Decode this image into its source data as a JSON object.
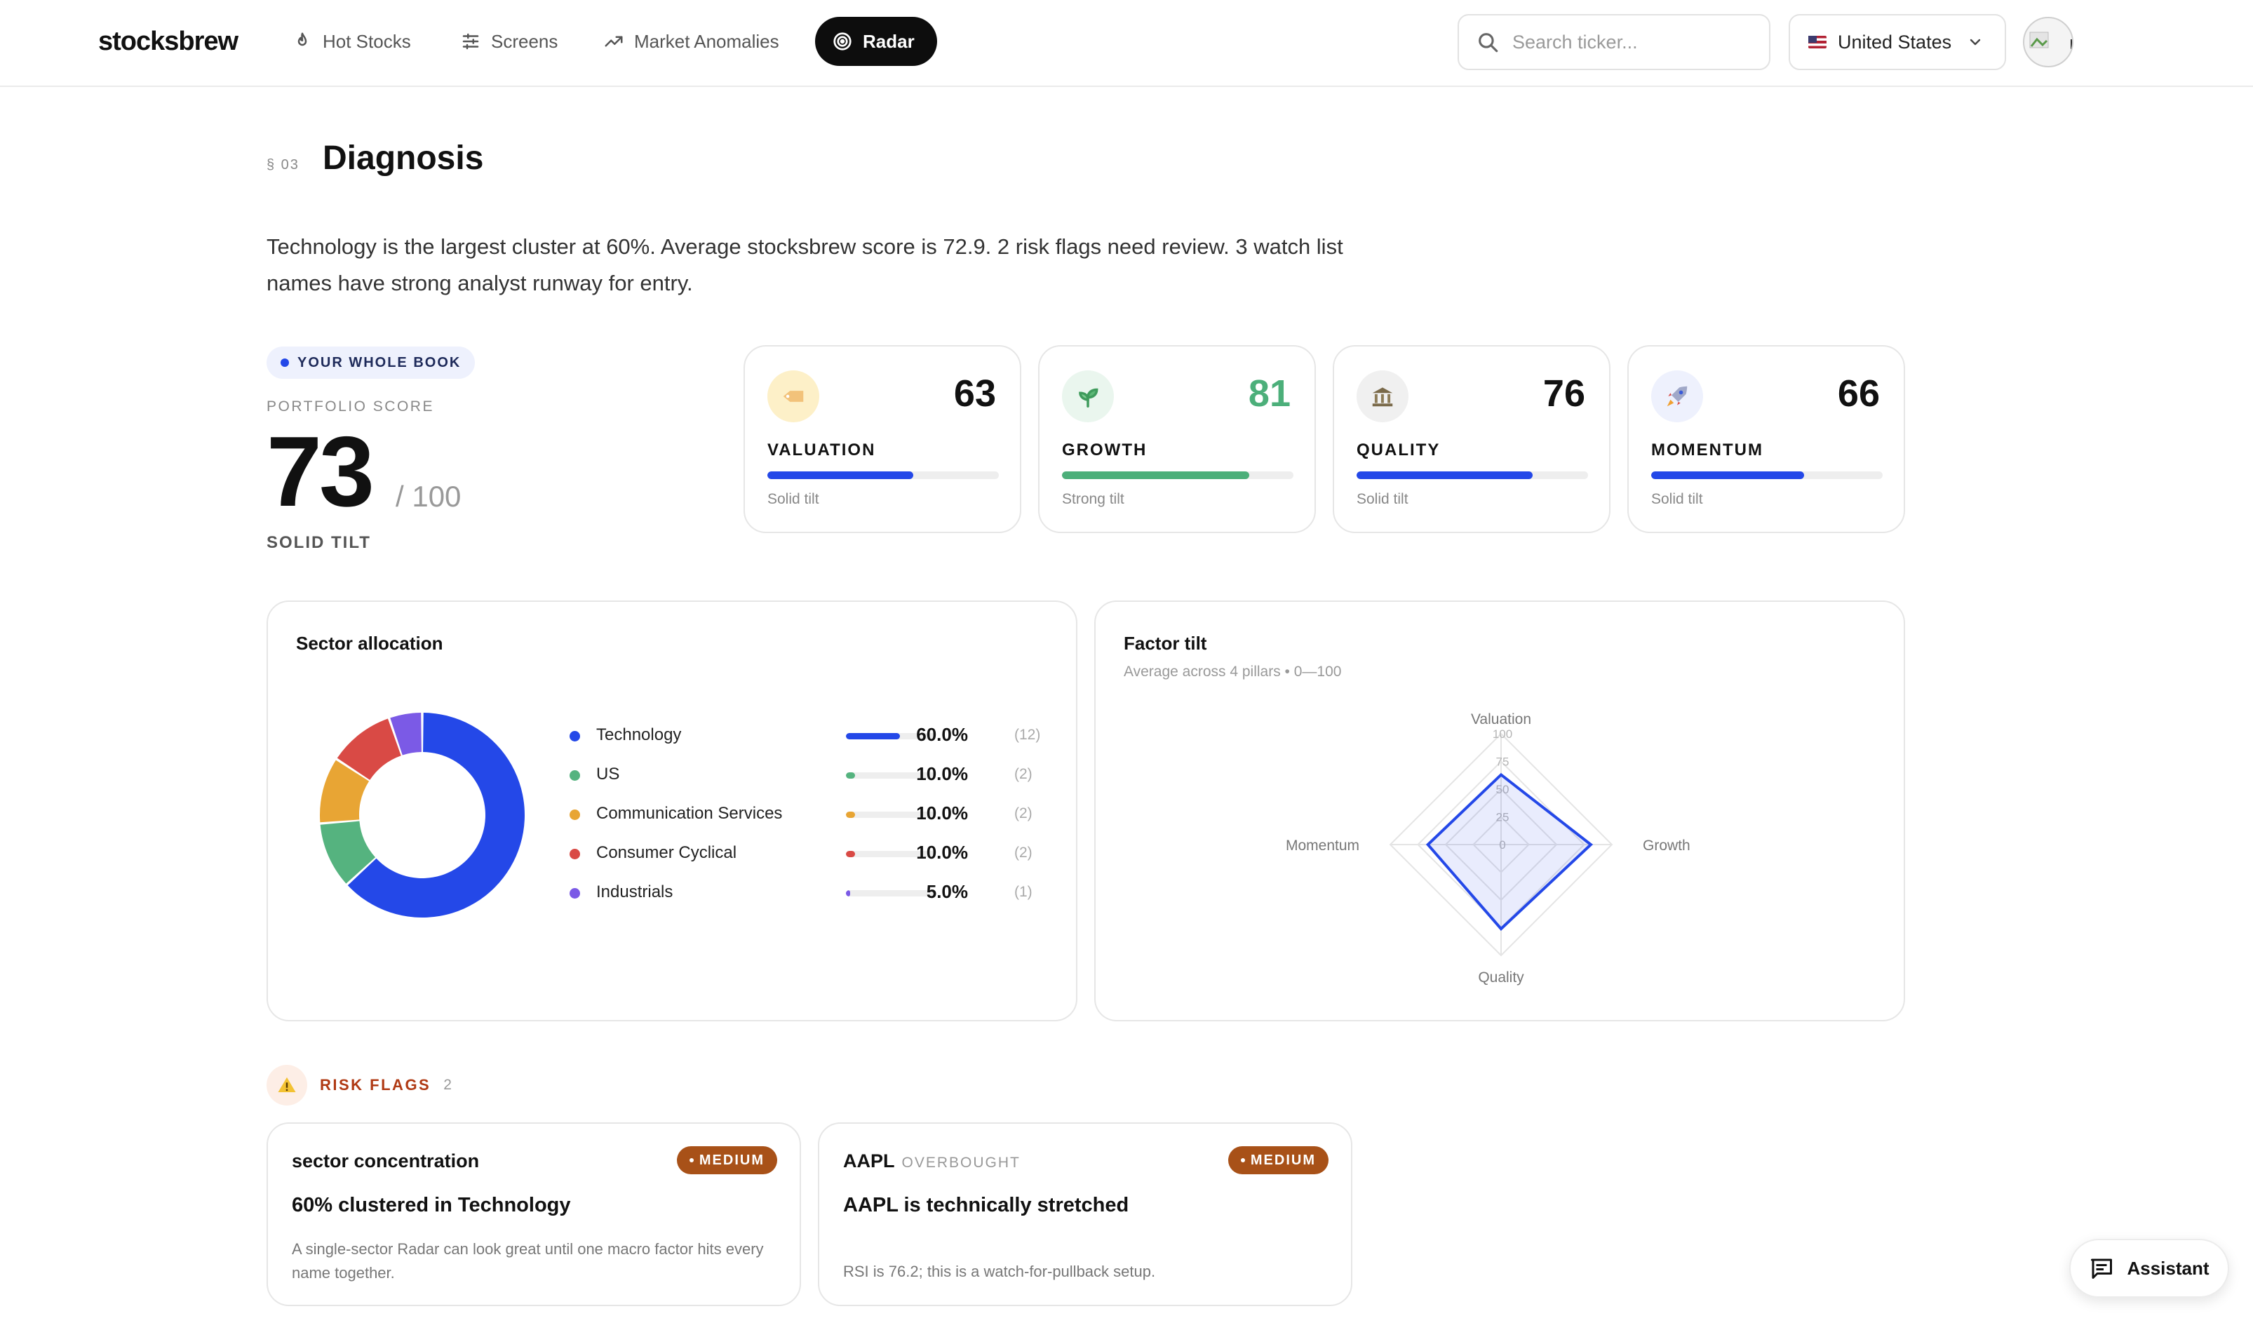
{
  "header": {
    "logo": "stocksbrew",
    "nav": [
      {
        "label": "Hot Stocks",
        "icon": "flame-icon"
      },
      {
        "label": "Screens",
        "icon": "sliders-icon"
      },
      {
        "label": "Market Anomalies",
        "icon": "trending-up-icon"
      },
      {
        "label": "Radar",
        "icon": "radar-icon",
        "active": true
      }
    ],
    "search_placeholder": "Search ticker...",
    "country": "United States"
  },
  "diagnosis": {
    "section_number": "§ 03",
    "title": "Diagnosis",
    "summary": "Technology is the largest cluster at 60%. Average stocksbrew score is 72.9. 2 risk flags need review. 3 watch list names have strong analyst runway for entry."
  },
  "portfolio": {
    "pill": "YOUR WHOLE BOOK",
    "label": "PORTFOLIO SCORE",
    "score": "73",
    "out_of": "/ 100",
    "tilt": "SOLID TILT"
  },
  "pillars": [
    {
      "name": "VALUATION",
      "value": "63",
      "fill": 0.63,
      "note": "Solid tilt",
      "color": "#2448e8",
      "value_color": "#111111",
      "icon": "price-tag-icon",
      "icon_bg": "#fdf0c8"
    },
    {
      "name": "GROWTH",
      "value": "81",
      "fill": 0.81,
      "note": "Strong tilt",
      "color": "#4caf7a",
      "value_color": "#4caf7a",
      "icon": "seedling-icon",
      "icon_bg": "#eaf6ee"
    },
    {
      "name": "QUALITY",
      "value": "76",
      "fill": 0.76,
      "note": "Solid tilt",
      "color": "#2448e8",
      "value_color": "#111111",
      "icon": "bank-icon",
      "icon_bg": "#f0f0f0"
    },
    {
      "name": "MOMENTUM",
      "value": "66",
      "fill": 0.66,
      "note": "Solid tilt",
      "color": "#2448e8",
      "value_color": "#111111",
      "icon": "rocket-icon",
      "icon_bg": "#eef1fd"
    }
  ],
  "sector_panel": {
    "title": "Sector allocation"
  },
  "factor_panel": {
    "title": "Factor tilt",
    "subtitle": "Average across 4 pillars • 0—100"
  },
  "chart_data": [
    {
      "type": "pie",
      "title": "Sector allocation",
      "categories": [
        "Technology",
        "US",
        "Communication Services",
        "Consumer Cyclical",
        "Industrials"
      ],
      "values": [
        60.0,
        10.0,
        10.0,
        10.0,
        5.0
      ],
      "counts": [
        "(12)",
        "(2)",
        "(2)",
        "(2)",
        "(1)"
      ],
      "labels": [
        "60.0%",
        "10.0%",
        "10.0%",
        "10.0%",
        "5.0%"
      ],
      "colors": [
        "#2448e8",
        "#55b37f",
        "#e8a534",
        "#d94a45",
        "#7b5ae6"
      ],
      "note": "donut"
    },
    {
      "type": "radar",
      "title": "Factor tilt",
      "axes": [
        "Valuation",
        "Growth",
        "Quality",
        "Momentum"
      ],
      "values": [
        63,
        81,
        76,
        66
      ],
      "ticks": [
        "0",
        "25",
        "50",
        "75",
        "100"
      ],
      "range": [
        0,
        100
      ],
      "color": "#2448e8"
    }
  ],
  "risk": {
    "label": "RISK FLAGS",
    "count": "2",
    "cards": [
      {
        "title": "sector concentration",
        "tag": "",
        "badge": "MEDIUM",
        "headline": "60% clustered in Technology",
        "body": "A single-sector Radar can look great until one macro factor hits every name together."
      },
      {
        "title": "AAPL",
        "tag": "OVERBOUGHT",
        "badge": "MEDIUM",
        "headline": "AAPL is technically stretched",
        "body": "RSI is 76.2; this is a watch-for-pullback setup."
      }
    ]
  },
  "assistant_label": "Assistant"
}
